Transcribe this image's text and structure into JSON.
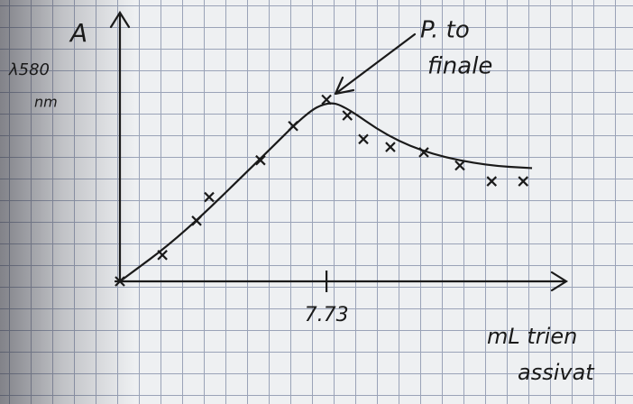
{
  "chart_data": {
    "type": "scatter",
    "y_label": "A",
    "y_sublabel": [
      "λ580",
      "nm"
    ],
    "annotation": [
      "P. to",
      "finale"
    ],
    "x_label": [
      "mL trien",
      "assivat"
    ],
    "x": [
      0,
      1.59,
      2.87,
      3.34,
      5.26,
      6.48,
      7.73,
      8.51,
      9.11,
      10.12,
      11.37,
      12.72,
      13.91,
      15.09
    ],
    "values": [
      0,
      0.1,
      0.23,
      0.32,
      0.46,
      0.59,
      0.69,
      0.63,
      0.54,
      0.51,
      0.49,
      0.44,
      0.38,
      0.38
    ],
    "color": "#1a1a1a",
    "curve": {
      "x": [
        0,
        2.26,
        5.3,
        6.99,
        7.73,
        8.34,
        10.02,
        11.71,
        13.73,
        15.42
      ],
      "values": [
        0,
        0.17,
        0.47,
        0.64,
        0.68,
        0.67,
        0.55,
        0.48,
        0.44,
        0.43
      ]
    },
    "xlim": [
      0,
      16.6
    ],
    "ylim": [
      0,
      1
    ],
    "xticks": [
      7.73
    ]
  }
}
